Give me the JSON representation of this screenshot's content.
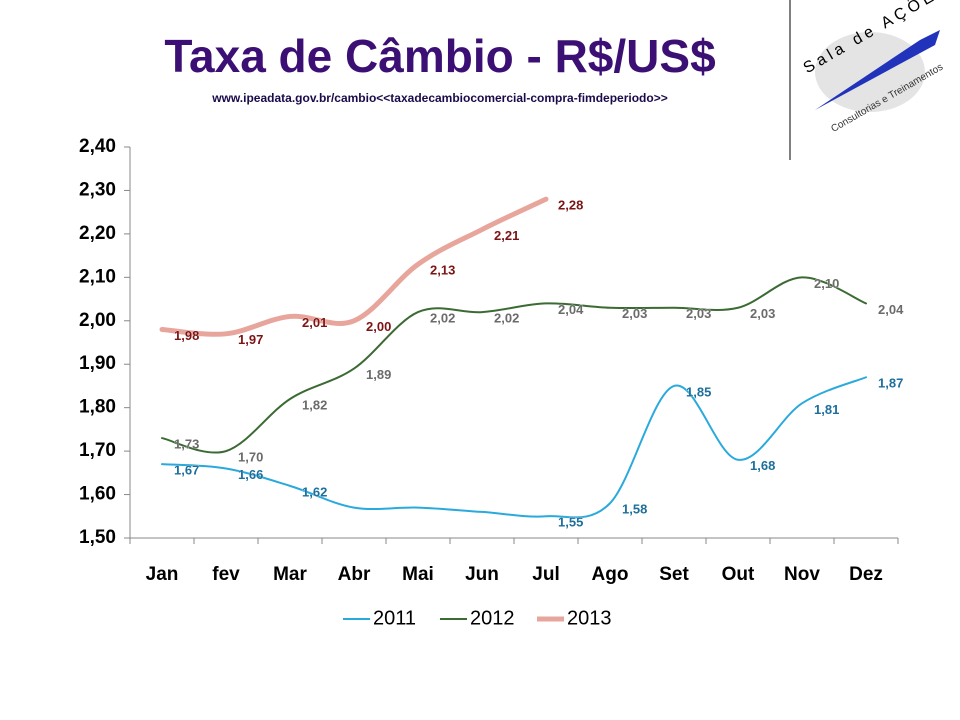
{
  "chart_data": {
    "type": "line",
    "title": "Taxa de Câmbio -  R$/US$",
    "subtitle": "www.ipeadata.gov.br/cambio<<taxadecambiocomercial-compra-fimdeperiodo>>",
    "logo": {
      "name": "Sala de AÇÕES",
      "tagline": "Consultorias e Treinamentos"
    },
    "categories": [
      "Jan",
      "fev",
      "Mar",
      "Abr",
      "Mai",
      "Jun",
      "Jul",
      "Ago",
      "Set",
      "Out",
      "Nov",
      "Dez"
    ],
    "series": [
      {
        "name": "2011",
        "color": "#2aa9dc",
        "label_color": "#1d6f9c",
        "values": [
          1.67,
          1.66,
          1.62,
          1.57,
          1.57,
          1.56,
          1.55,
          1.58,
          1.85,
          1.68,
          1.81,
          1.87
        ],
        "value_labels": [
          "1,67",
          "1,66",
          "1,62",
          null,
          null,
          null,
          "1,55",
          "1,58",
          "1,85",
          "1,68",
          "1,81",
          "1,87"
        ]
      },
      {
        "name": "2012",
        "color": "#3b6a33",
        "label_color": "#6b6b6b",
        "values": [
          1.73,
          1.7,
          1.82,
          1.89,
          2.02,
          2.02,
          2.04,
          2.03,
          2.03,
          2.03,
          2.1,
          2.04
        ],
        "value_labels": [
          "1,73",
          "1,70",
          "1,82",
          "1,89",
          "2,02",
          "2,02",
          "2,04",
          "2,03",
          "2,03",
          "2,03",
          "2,10",
          "2,04"
        ]
      },
      {
        "name": "2013",
        "color": "#e8a59c",
        "label_color": "#7d1414",
        "values": [
          1.98,
          1.97,
          2.01,
          2.0,
          2.13,
          2.21,
          2.28,
          null,
          null,
          null,
          null,
          null
        ],
        "value_labels": [
          "1,98",
          "1,97",
          "2,01",
          "2,00",
          "2,13",
          "2,21",
          "2,28",
          null,
          null,
          null,
          null,
          null
        ]
      }
    ],
    "ylim": [
      1.5,
      2.4
    ],
    "yticks": [
      {
        "value": 1.5,
        "label": "1,50"
      },
      {
        "value": 1.6,
        "label": "1,60"
      },
      {
        "value": 1.7,
        "label": "1,70"
      },
      {
        "value": 1.8,
        "label": "1,80"
      },
      {
        "value": 1.9,
        "label": "1,90"
      },
      {
        "value": 2.0,
        "label": "2,00"
      },
      {
        "value": 2.1,
        "label": "2,10"
      },
      {
        "value": 2.2,
        "label": "2,20"
      },
      {
        "value": 2.3,
        "label": "2,30"
      },
      {
        "value": 2.4,
        "label": "2,40"
      }
    ],
    "grid": false,
    "legend": "bottom"
  }
}
